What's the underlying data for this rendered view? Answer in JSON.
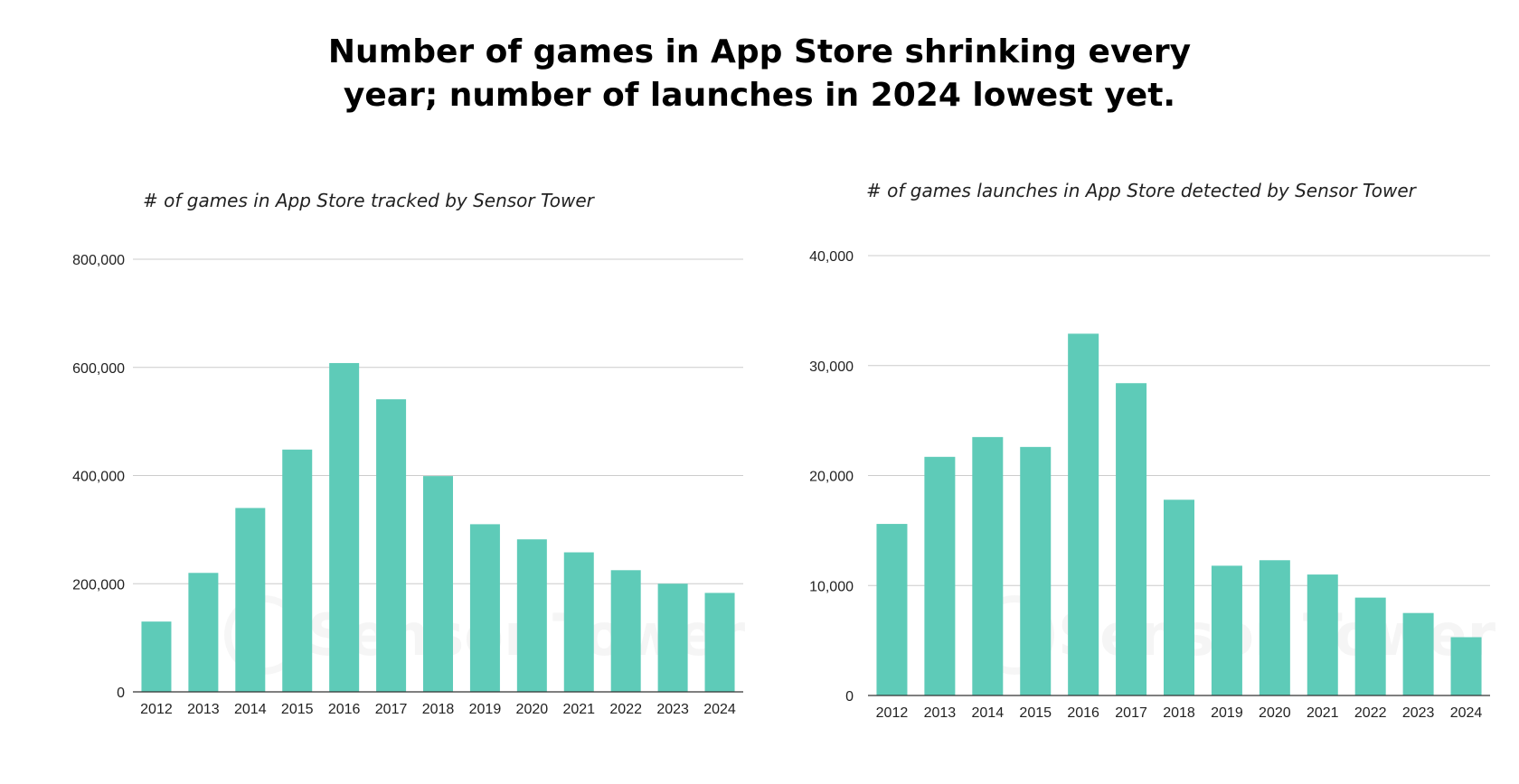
{
  "header": {
    "title_line1": "Number of games in App Store shrinking every",
    "title_line2": "year; number of launches in 2024 lowest yet."
  },
  "watermark": "Sensor Tower",
  "colors": {
    "bar": "#5ecbb8",
    "grid": "#cccccc",
    "axis": "#333333"
  },
  "chart_data": [
    {
      "type": "bar",
      "title": "# of games in App Store tracked by Sensor Tower",
      "categories": [
        "2012",
        "2013",
        "2014",
        "2015",
        "2016",
        "2017",
        "2018",
        "2019",
        "2020",
        "2021",
        "2022",
        "2023",
        "2024"
      ],
      "values": [
        130000,
        220000,
        340000,
        448000,
        608000,
        541000,
        399000,
        310000,
        282000,
        258000,
        225000,
        200000,
        183000
      ],
      "ylim": [
        0,
        800000
      ],
      "yticks": [
        0,
        200000,
        400000,
        600000,
        800000
      ],
      "ytick_labels": [
        "0",
        "200,000",
        "400,000",
        "600,000",
        "800,000"
      ],
      "xlabel": "",
      "ylabel": ""
    },
    {
      "type": "bar",
      "title": "# of games launches  in App Store detected by Sensor Tower",
      "categories": [
        "2012",
        "2013",
        "2014",
        "2015",
        "2016",
        "2017",
        "2018",
        "2019",
        "2020",
        "2021",
        "2022",
        "2023",
        "2024"
      ],
      "values": [
        15600,
        21700,
        23500,
        22600,
        32900,
        28400,
        17800,
        11800,
        12300,
        11000,
        8900,
        7500,
        5300
      ],
      "ylim": [
        0,
        40000
      ],
      "yticks": [
        0,
        10000,
        20000,
        30000,
        40000
      ],
      "ytick_labels": [
        "0",
        "10,000",
        "20,000",
        "30,000",
        "40,000"
      ],
      "xlabel": "",
      "ylabel": ""
    }
  ]
}
